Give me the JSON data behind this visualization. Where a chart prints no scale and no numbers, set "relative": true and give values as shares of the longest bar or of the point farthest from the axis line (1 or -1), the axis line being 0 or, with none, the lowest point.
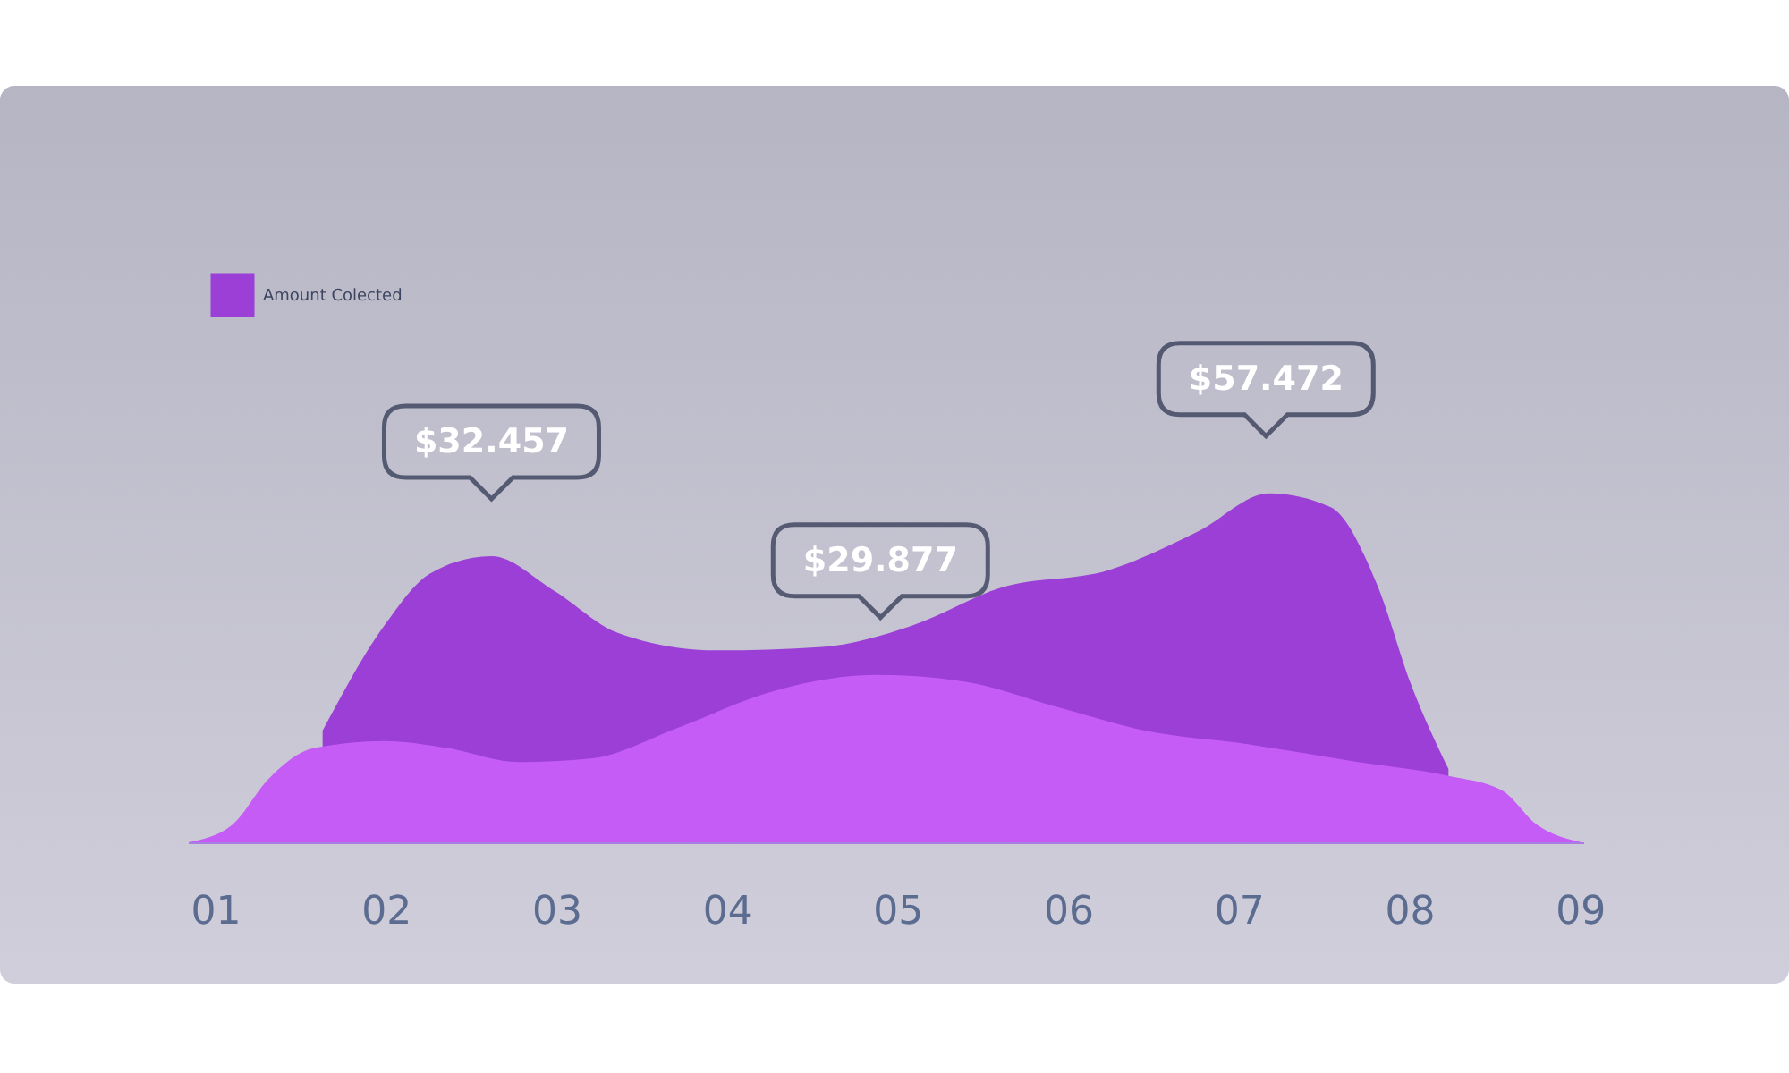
{
  "chart_data": {
    "type": "area",
    "relative": true,
    "legend": "top left",
    "grid": false,
    "xlim": [
      0.84,
      9.02
    ],
    "xticks": [
      {
        "value": 1,
        "label": "01"
      },
      {
        "value": 2,
        "label": "02"
      },
      {
        "value": 3,
        "label": "03"
      },
      {
        "value": 4,
        "label": "04"
      },
      {
        "value": 5,
        "label": "05"
      },
      {
        "value": 6,
        "label": "06"
      },
      {
        "value": 7,
        "label": "07"
      },
      {
        "value": 8,
        "label": "08"
      },
      {
        "value": 9,
        "label": "09"
      }
    ],
    "annotations": [
      {
        "text": "$32.457",
        "x": 2.62,
        "y": 0.82
      },
      {
        "text": "$29.877",
        "x": 4.9,
        "y": 0.48
      },
      {
        "text": "$57.472",
        "x": 7.16,
        "y": 1.0
      }
    ],
    "series": [
      {
        "name": "Amount Colected",
        "color": "#9b3fd6",
        "x": [
          1.63,
          1.99,
          2.26,
          2.62,
          2.99,
          3.36,
          3.93,
          4.56,
          5.08,
          5.61,
          6.24,
          6.76,
          7.18,
          7.54,
          7.81,
          8.02,
          8.23
        ],
        "values": [
          0.32,
          0.62,
          0.77,
          0.82,
          0.72,
          0.6,
          0.55,
          0.56,
          0.62,
          0.73,
          0.78,
          0.89,
          1.0,
          0.96,
          0.74,
          0.44,
          0.21
        ]
      },
      {
        "color": "#c45cf5",
        "x": [
          0.84,
          1.1,
          1.31,
          1.58,
          1.99,
          2.36,
          2.78,
          3.2,
          3.72,
          4.25,
          4.87,
          5.4,
          5.92,
          6.45,
          7.07,
          7.7,
          8.23,
          8.54,
          8.75,
          9.01
        ],
        "values": [
          0,
          0.05,
          0.18,
          0.27,
          0.29,
          0.27,
          0.23,
          0.24,
          0.33,
          0.43,
          0.48,
          0.46,
          0.39,
          0.32,
          0.28,
          0.23,
          0.19,
          0.15,
          0.05,
          0
        ]
      }
    ]
  }
}
